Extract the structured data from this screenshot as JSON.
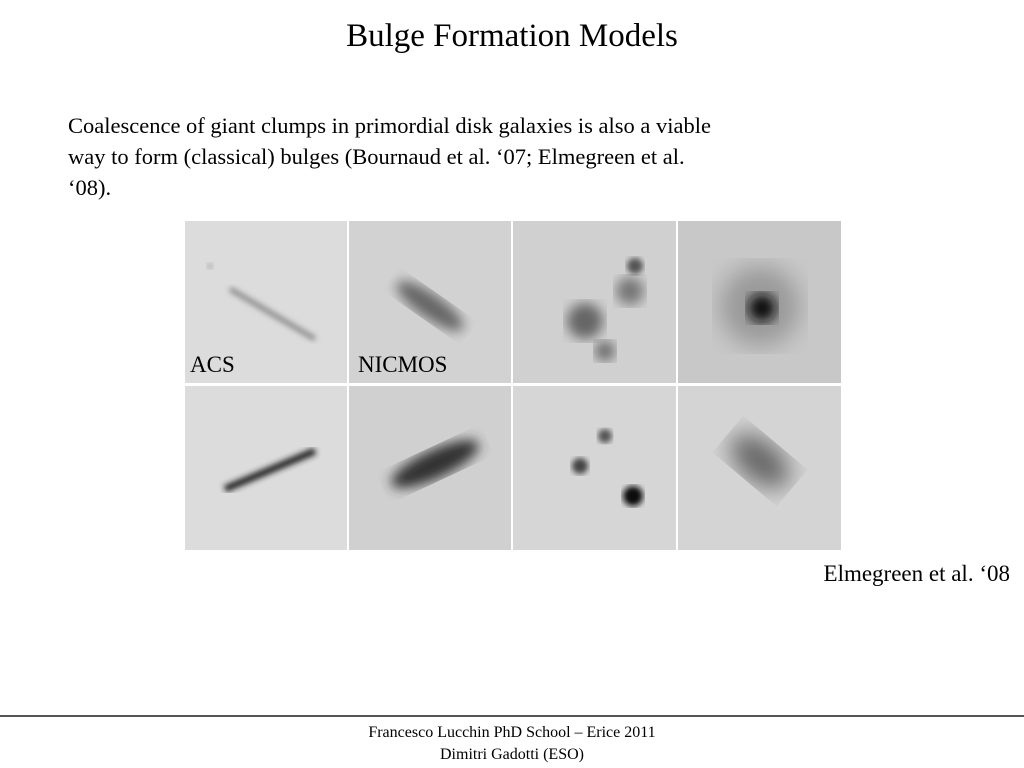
{
  "header": {
    "title": "Bulge Formation Models"
  },
  "body": {
    "lines": [
      "Coalescence of giant clumps in primordial disk galaxies is also a viable",
      "way to form (classical) bulges (Bournaud et al. ‘07; Elmegreen et al.",
      "‘08)."
    ]
  },
  "figure": {
    "labels": [
      "ACS",
      "NICMOS"
    ],
    "caption": "Elmegreen et al. ‘08"
  },
  "footer": {
    "lines": [
      "Francesco Lucchin PhD School – Erice 2011",
      "Dimitri Gadotti (ESO)"
    ]
  }
}
